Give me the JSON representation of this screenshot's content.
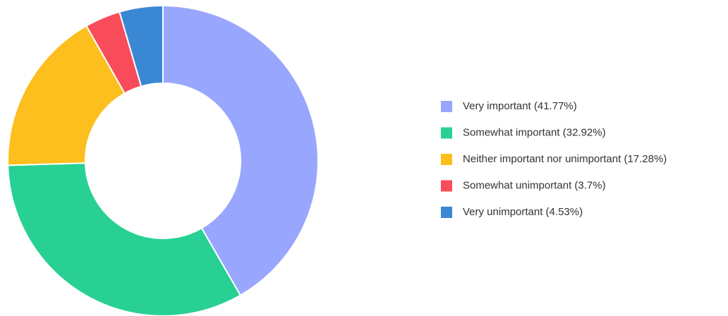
{
  "chart_data": {
    "type": "donut",
    "categories": [
      "Very important (41.77%)",
      "Somewhat important (32.92%)",
      "Neither important nor unimportant (17.28%)",
      "Somewhat unimportant (3.7%)",
      "Very unimportant (4.53%)"
    ],
    "values": [
      41.77,
      32.92,
      17.28,
      3.7,
      4.53
    ],
    "colors": [
      "#99a6fe",
      "#28d193",
      "#fdbf1d",
      "#f94c5b",
      "#3a87d3"
    ],
    "legend": "right"
  }
}
